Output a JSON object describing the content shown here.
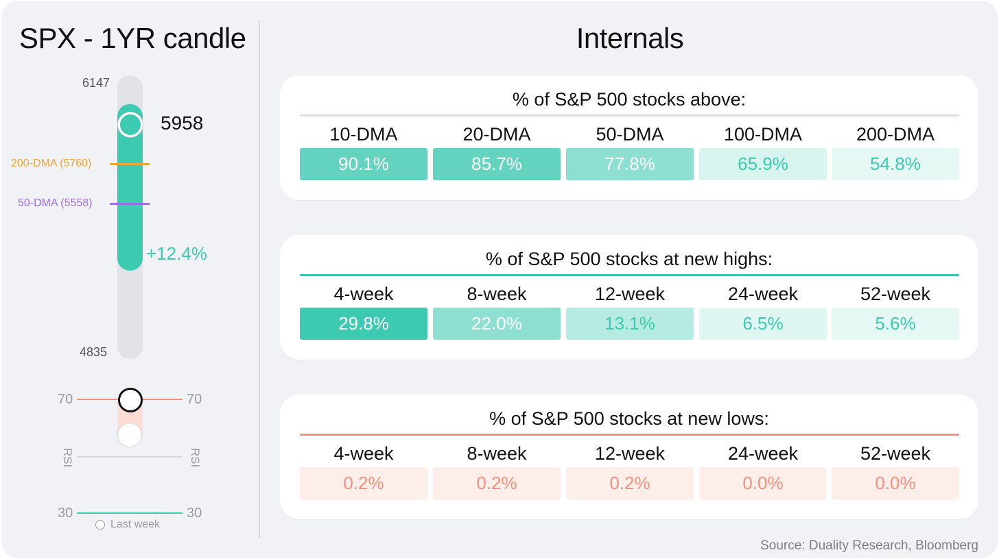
{
  "left": {
    "title": "SPX - 1YR candle",
    "candle": {
      "high": "6147",
      "low": "4835",
      "current_label": "5958",
      "change": "+12.4%",
      "dma200": {
        "label": "200-DMA (5760)",
        "color": "#f0a431"
      },
      "dma50": {
        "label": "50-DMA (5558)",
        "color": "#9b6ee6"
      },
      "body_color": "#3ccab0"
    },
    "rsi": {
      "upper": "70",
      "lower": "30",
      "label": "RSI",
      "legend": "Last week"
    }
  },
  "right": {
    "title": "Internals",
    "panels": [
      {
        "title": "% of S&P 500 stocks above:",
        "rule_color": "#dcdde2",
        "text_color_dark": "#ffffff",
        "text_color_light": "#3ccab0",
        "columns": [
          {
            "header": "10-DMA",
            "value": "90.1%",
            "bg": "#64d4c0",
            "fg": "#ffffff"
          },
          {
            "header": "20-DMA",
            "value": "85.7%",
            "bg": "#64d4c0",
            "fg": "#ffffff"
          },
          {
            "header": "50-DMA",
            "value": "77.8%",
            "bg": "#8de0d1",
            "fg": "#ffffff"
          },
          {
            "header": "100-DMA",
            "value": "65.9%",
            "bg": "#d7f4ef",
            "fg": "#3ccab0"
          },
          {
            "header": "200-DMA",
            "value": "54.8%",
            "bg": "#e6f8f4",
            "fg": "#3ccab0"
          }
        ]
      },
      {
        "title": "% of S&P 500 stocks at new highs:",
        "rule_color": "#3ccab0",
        "columns": [
          {
            "header": "4-week",
            "value": "29.8%",
            "bg": "#3ccab0",
            "fg": "#ffffff"
          },
          {
            "header": "8-week",
            "value": "22.0%",
            "bg": "#8de0d1",
            "fg": "#ffffff"
          },
          {
            "header": "12-week",
            "value": "13.1%",
            "bg": "#b5ebe1",
            "fg": "#3ccab0"
          },
          {
            "header": "24-week",
            "value": "6.5%",
            "bg": "#e0f6f2",
            "fg": "#3ccab0"
          },
          {
            "header": "52-week",
            "value": "5.6%",
            "bg": "#e6f8f4",
            "fg": "#3ccab0"
          }
        ]
      },
      {
        "title": "% of S&P 500 stocks at new lows:",
        "rule_color": "#f2917d",
        "columns": [
          {
            "header": "4-week",
            "value": "0.2%",
            "bg": "#fdeeea",
            "fg": "#f2917d"
          },
          {
            "header": "8-week",
            "value": "0.2%",
            "bg": "#fdeeea",
            "fg": "#f2917d"
          },
          {
            "header": "12-week",
            "value": "0.2%",
            "bg": "#fdeeea",
            "fg": "#f2917d"
          },
          {
            "header": "24-week",
            "value": "0.0%",
            "bg": "#fdeeea",
            "fg": "#f2917d"
          },
          {
            "header": "52-week",
            "value": "0.0%",
            "bg": "#fdeeea",
            "fg": "#f2917d"
          }
        ]
      }
    ]
  },
  "chart_data": [
    {
      "type": "bar",
      "title": "SPX - 1YR candle",
      "range": {
        "low": 4835,
        "high": 6147
      },
      "current": 5958,
      "change_pct": 12.4,
      "dma": [
        {
          "name": "200-DMA",
          "value": 5760
        },
        {
          "name": "50-DMA",
          "value": 5558
        }
      ],
      "rsi_levels": [
        70,
        30
      ]
    },
    {
      "type": "table",
      "title": "% of S&P 500 stocks above:",
      "categories": [
        "10-DMA",
        "20-DMA",
        "50-DMA",
        "100-DMA",
        "200-DMA"
      ],
      "values": [
        90.1,
        85.7,
        77.8,
        65.9,
        54.8
      ]
    },
    {
      "type": "table",
      "title": "% of S&P 500 stocks at new highs:",
      "categories": [
        "4-week",
        "8-week",
        "12-week",
        "24-week",
        "52-week"
      ],
      "values": [
        29.8,
        22.0,
        13.1,
        6.5,
        5.6
      ]
    },
    {
      "type": "table",
      "title": "% of S&P 500 stocks at new lows:",
      "categories": [
        "4-week",
        "8-week",
        "12-week",
        "24-week",
        "52-week"
      ],
      "values": [
        0.2,
        0.2,
        0.2,
        0.0,
        0.0
      ]
    }
  ],
  "source": "Source: Duality Research, Bloomberg"
}
